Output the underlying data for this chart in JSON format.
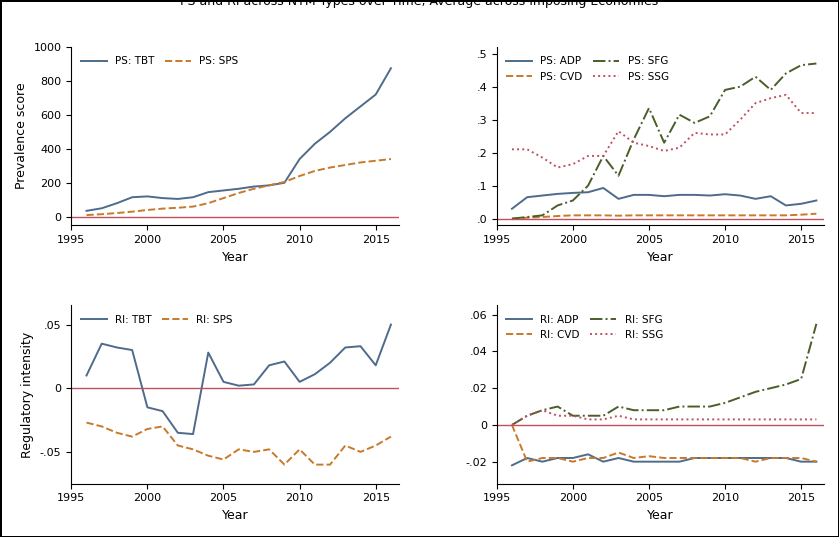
{
  "years": [
    1996,
    1997,
    1998,
    1999,
    2000,
    2001,
    2002,
    2003,
    2004,
    2005,
    2006,
    2007,
    2008,
    2009,
    2010,
    2011,
    2012,
    2013,
    2014,
    2015,
    2016
  ],
  "ps_tbt": [
    35,
    50,
    80,
    115,
    120,
    110,
    105,
    115,
    145,
    155,
    165,
    178,
    185,
    200,
    340,
    430,
    500,
    580,
    650,
    720,
    875
  ],
  "ps_sps": [
    10,
    15,
    22,
    30,
    40,
    48,
    53,
    60,
    80,
    110,
    140,
    165,
    185,
    205,
    240,
    270,
    290,
    305,
    320,
    330,
    340
  ],
  "ps_adp": [
    0.03,
    0.065,
    0.07,
    0.075,
    0.078,
    0.08,
    0.093,
    0.06,
    0.072,
    0.072,
    0.068,
    0.072,
    0.072,
    0.07,
    0.074,
    0.07,
    0.06,
    0.068,
    0.04,
    0.045,
    0.055
  ],
  "ps_cvd": [
    0.0,
    0.003,
    0.005,
    0.008,
    0.01,
    0.01,
    0.01,
    0.009,
    0.01,
    0.01,
    0.01,
    0.01,
    0.01,
    0.01,
    0.01,
    0.01,
    0.01,
    0.01,
    0.01,
    0.012,
    0.015
  ],
  "ps_sfg": [
    0.0,
    0.005,
    0.01,
    0.04,
    0.055,
    0.1,
    0.19,
    0.13,
    0.24,
    0.335,
    0.23,
    0.315,
    0.29,
    0.31,
    0.39,
    0.4,
    0.43,
    0.39,
    0.44,
    0.465,
    0.47
  ],
  "ps_ssg": [
    0.21,
    0.21,
    0.185,
    0.155,
    0.165,
    0.19,
    0.19,
    0.265,
    0.23,
    0.22,
    0.205,
    0.215,
    0.26,
    0.255,
    0.255,
    0.3,
    0.35,
    0.365,
    0.375,
    0.32,
    0.32
  ],
  "ri_tbt": [
    0.01,
    0.035,
    0.032,
    0.03,
    -0.015,
    -0.018,
    -0.035,
    -0.036,
    0.028,
    0.005,
    0.002,
    0.003,
    0.018,
    0.021,
    0.005,
    0.011,
    0.02,
    0.032,
    0.033,
    0.018,
    0.05
  ],
  "ri_sps": [
    -0.027,
    -0.03,
    -0.035,
    -0.038,
    -0.032,
    -0.03,
    -0.045,
    -0.048,
    -0.053,
    -0.056,
    -0.048,
    -0.05,
    -0.048,
    -0.06,
    -0.048,
    -0.06,
    -0.06,
    -0.045,
    -0.05,
    -0.045,
    -0.038
  ],
  "ri_adp": [
    -0.022,
    -0.018,
    -0.02,
    -0.018,
    -0.018,
    -0.016,
    -0.02,
    -0.018,
    -0.02,
    -0.02,
    -0.02,
    -0.02,
    -0.018,
    -0.018,
    -0.018,
    -0.018,
    -0.018,
    -0.018,
    -0.018,
    -0.02,
    -0.02
  ],
  "ri_cvd": [
    0.0,
    -0.02,
    -0.018,
    -0.018,
    -0.02,
    -0.018,
    -0.018,
    -0.015,
    -0.018,
    -0.017,
    -0.018,
    -0.018,
    -0.018,
    -0.018,
    -0.018,
    -0.018,
    -0.02,
    -0.018,
    -0.018,
    -0.018,
    -0.02
  ],
  "ri_sfg": [
    0.0,
    0.005,
    0.008,
    0.01,
    0.005,
    0.005,
    0.005,
    0.01,
    0.008,
    0.008,
    0.008,
    0.01,
    0.01,
    0.01,
    0.012,
    0.015,
    0.018,
    0.02,
    0.022,
    0.025,
    0.055
  ],
  "ri_ssg": [
    0.0,
    0.005,
    0.008,
    0.005,
    0.005,
    0.003,
    0.003,
    0.005,
    0.003,
    0.003,
    0.003,
    0.003,
    0.003,
    0.003,
    0.003,
    0.003,
    0.003,
    0.003,
    0.003,
    0.003,
    0.003
  ],
  "color_blue": "#4e6b8c",
  "color_orange": "#c8792a",
  "color_darkgreen": "#4a5e2a",
  "color_pink": "#c05060",
  "color_zero": "#c05060",
  "title": "PS and RI across NTM Types over Time, Average across Imposing Economies",
  "xlabel": "Year",
  "ylabel_ps": "Prevalence score",
  "ylabel_ri": "Regulatory intensity"
}
